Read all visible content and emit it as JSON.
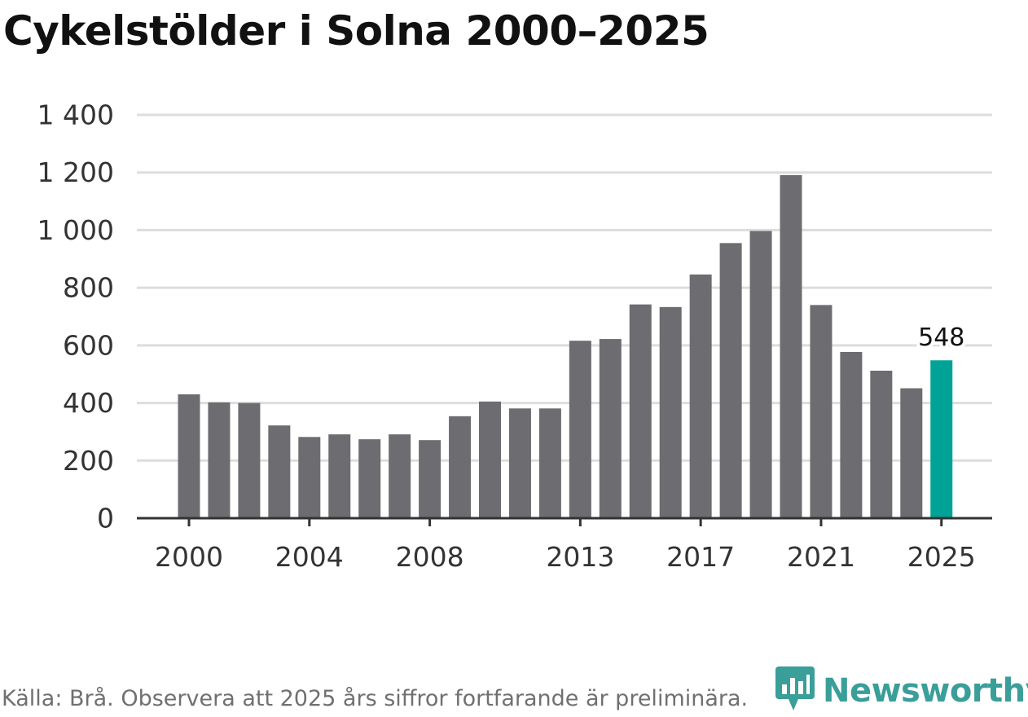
{
  "chart_data": {
    "type": "bar",
    "title": "Cykelstölder i Solna 2000–2025",
    "categories": [
      "2000",
      "2001",
      "2002",
      "2003",
      "2004",
      "2005",
      "2006",
      "2007",
      "2008",
      "2009",
      "2010",
      "2011",
      "2012",
      "2013",
      "2014",
      "2015",
      "2016",
      "2017",
      "2018",
      "2019",
      "2020",
      "2021",
      "2022",
      "2023",
      "2024",
      "2025"
    ],
    "values": [
      430,
      402,
      400,
      322,
      282,
      291,
      274,
      291,
      271,
      354,
      405,
      381,
      381,
      616,
      622,
      742,
      733,
      846,
      955,
      997,
      1191,
      740,
      577,
      512,
      451,
      548
    ],
    "highlight_category": "2025",
    "highlight_label": "548",
    "colors": {
      "bar": "#6d6c71",
      "highlight": "#00a396",
      "grid": "#dddddd",
      "axis": "#333333",
      "tick_text": "#333333"
    },
    "ylim": [
      0,
      1400
    ],
    "yticks": [
      {
        "value": 0,
        "label": "0"
      },
      {
        "value": 200,
        "label": "200"
      },
      {
        "value": 400,
        "label": "400"
      },
      {
        "value": 600,
        "label": "600"
      },
      {
        "value": 800,
        "label": "800"
      },
      {
        "value": 1000,
        "label": "1 000"
      },
      {
        "value": 1200,
        "label": "1 200"
      },
      {
        "value": 1400,
        "label": "1 400"
      }
    ],
    "xticks": [
      "2000",
      "2004",
      "2008",
      "2013",
      "2017",
      "2021",
      "2025"
    ],
    "xlabel": "",
    "ylabel": "",
    "grid": true
  },
  "footer": {
    "source": "Källa: Brå. Observera att 2025 års siffror fortfarande är preliminära.",
    "brand_name": "Newsworthy",
    "brand_icon": "newsworthy-logo-icon",
    "brand_color": "#3a9e99"
  }
}
